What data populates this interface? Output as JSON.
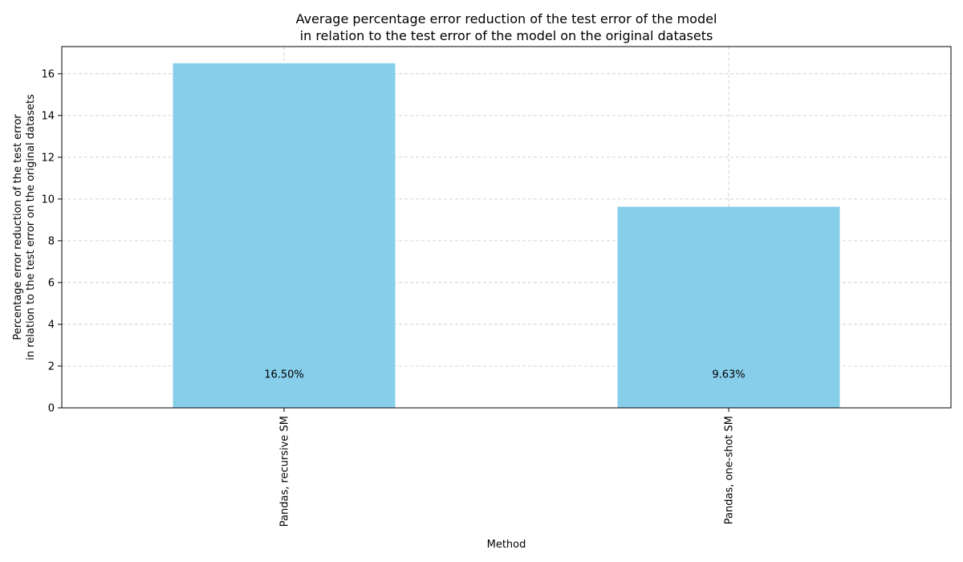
{
  "chart_data": {
    "type": "bar",
    "title_lines": [
      "Average percentage error reduction of the test error of the model",
      "in relation to the test error of the model on the original datasets"
    ],
    "xlabel": "Method",
    "ylabel_lines": [
      "Percentage error reduction of the test error",
      "in relation to the test error on the original datasets"
    ],
    "categories": [
      "Pandas, recursive SM",
      "Pandas, one-shot SM"
    ],
    "values": [
      16.5,
      9.63
    ],
    "data_labels": [
      "16.50%",
      "9.63%"
    ],
    "ylim": [
      0,
      17.3
    ],
    "yticks": [
      0,
      2,
      4,
      6,
      8,
      10,
      12,
      14,
      16
    ],
    "grid": true,
    "bar_color": "#87ceeb"
  }
}
